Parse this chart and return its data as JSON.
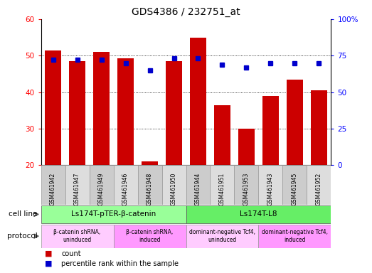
{
  "title": "GDS4386 / 232751_at",
  "samples": [
    "GSM461942",
    "GSM461947",
    "GSM461949",
    "GSM461946",
    "GSM461948",
    "GSM461950",
    "GSM461944",
    "GSM461951",
    "GSM461953",
    "GSM461943",
    "GSM461945",
    "GSM461952"
  ],
  "counts": [
    51.5,
    48.5,
    51.0,
    49.2,
    21.0,
    48.5,
    55.0,
    36.5,
    30.0,
    39.0,
    43.5,
    40.5
  ],
  "percentiles": [
    72,
    72,
    72,
    70,
    65,
    73,
    73,
    69,
    67,
    70,
    70,
    70
  ],
  "ylim_left": [
    20,
    60
  ],
  "ylim_right": [
    0,
    100
  ],
  "yticks_left": [
    20,
    30,
    40,
    50,
    60
  ],
  "yticks_right": [
    0,
    25,
    50,
    75,
    100
  ],
  "yticklabels_right": [
    "0",
    "25",
    "50",
    "75",
    "100%"
  ],
  "bar_color": "#cc0000",
  "dot_color": "#0000cc",
  "cell_line_groups": [
    {
      "label": "Ls174T-pTER-β-catenin",
      "start": 0,
      "end": 6,
      "color": "#99ff99"
    },
    {
      "label": "Ls174T-L8",
      "start": 6,
      "end": 12,
      "color": "#66ee66"
    }
  ],
  "protocol_groups": [
    {
      "label": "β-catenin shRNA,\nuninduced",
      "start": 0,
      "end": 3,
      "color": "#ffccff"
    },
    {
      "label": "β-catenin shRNA,\ninduced",
      "start": 3,
      "end": 6,
      "color": "#ff99ff"
    },
    {
      "label": "dominant-negative Tcf4,\nuninduced",
      "start": 6,
      "end": 9,
      "color": "#ffccff"
    },
    {
      "label": "dominant-negative Tcf4,\ninduced",
      "start": 9,
      "end": 12,
      "color": "#ff99ff"
    }
  ],
  "legend_count_label": "count",
  "legend_pct_label": "percentile rank within the sample",
  "cell_line_label": "cell line",
  "protocol_label": "protocol",
  "bar_width": 0.65,
  "tick_fontsize": 7.5,
  "title_fontsize": 10
}
